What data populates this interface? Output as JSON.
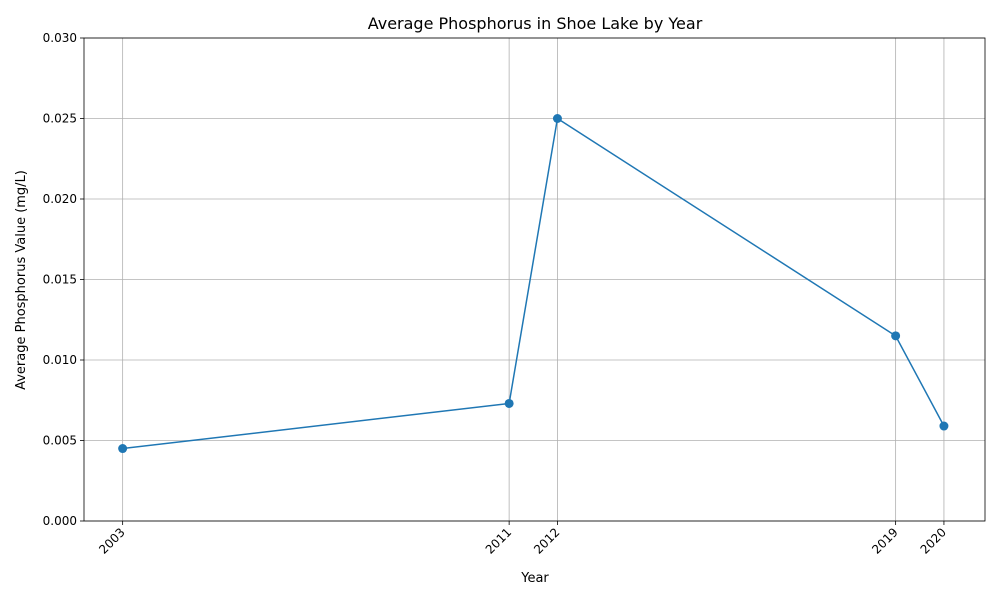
{
  "chart_data": {
    "type": "line",
    "title": "Average Phosphorus in Shoe Lake by Year",
    "xlabel": "Year",
    "ylabel": "Average Phosphorus Value (mg/L)",
    "x": [
      2003,
      2011,
      2012,
      2019,
      2020
    ],
    "x_tick_labels": [
      "2003",
      "2011",
      "2012",
      "2019",
      "2020"
    ],
    "xlim": [
      2002.2,
      2020.85
    ],
    "ylim": [
      0,
      0.03
    ],
    "y_ticks": [
      0,
      0.005,
      0.01,
      0.015,
      0.02,
      0.025,
      0.03
    ],
    "y_tick_labels": [
      "0.000",
      "0.005",
      "0.010",
      "0.015",
      "0.020",
      "0.025",
      "0.030"
    ],
    "grid": true,
    "series": [
      {
        "values": [
          0.0045,
          0.0073,
          0.025,
          0.0115,
          0.0059
        ],
        "color": "#1f77b4",
        "marker": "circle"
      }
    ]
  }
}
